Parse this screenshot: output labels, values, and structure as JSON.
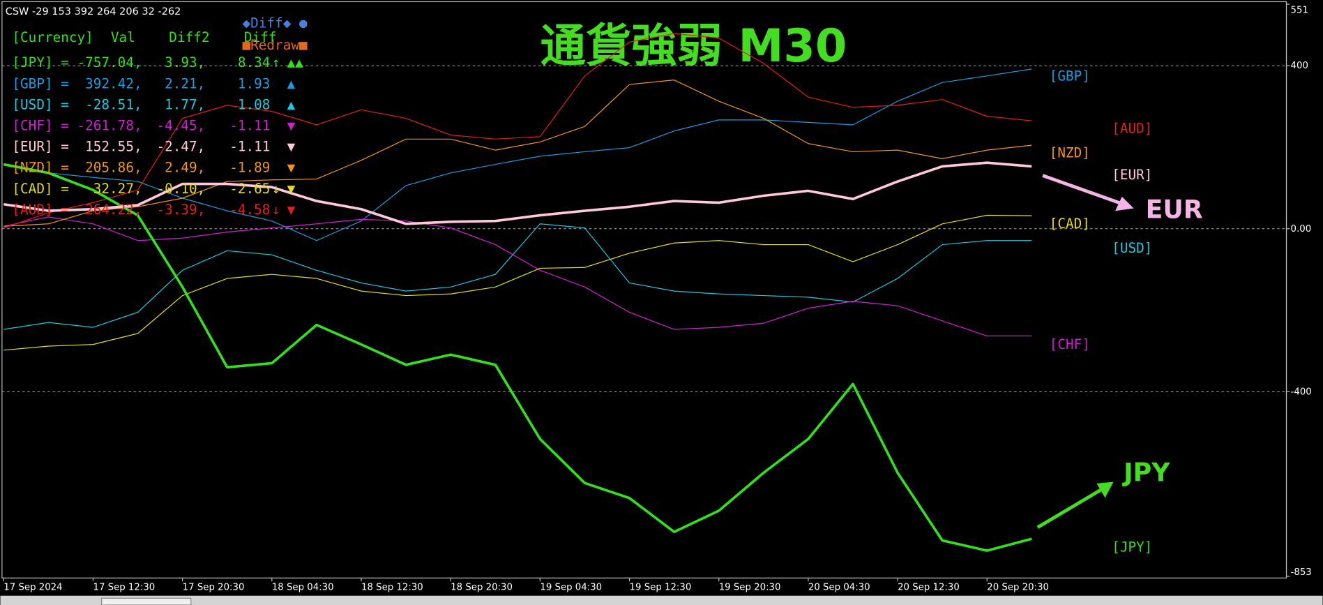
{
  "header": {
    "status": "CSW -29 153 392 264 206 32 -262"
  },
  "buttons": {
    "diff": "◆Diff◆ ●",
    "redraw": "■Redraw■"
  },
  "info_table": {
    "columns": [
      "[Currency]",
      "Val",
      "Diff2",
      "Diff"
    ],
    "rows": [
      {
        "label": "[JPY] = -757.04,",
        "diff2": "3.93,",
        "diff": "8.34",
        "arrow": "↑",
        "signal": "▲▲",
        "color": "#33e01e"
      },
      {
        "label": "[GBP] =  392.42,",
        "diff2": "2.21,",
        "diff": "1.93",
        "signal": "▲",
        "color": "#1e9be0"
      },
      {
        "label": "[USD] =  -28.51,",
        "diff2": "1.77,",
        "diff": "1.08",
        "signal": "▲",
        "color": "#1ec8e0"
      },
      {
        "label": "[CHF] = -261.78,",
        "diff2": "-4.45,",
        "diff": "-1.11",
        "signal": "▼",
        "color": "#d21ed2"
      },
      {
        "label": "[EUR] =  152.55,",
        "diff2": "-2.47,",
        "diff": "-1.11",
        "signal": "▼",
        "color": "#ffc8dc"
      },
      {
        "label": "[NZD] =  205.86,",
        "diff2": "2.49,",
        "diff": "-1.89",
        "signal": "▼",
        "color": "#f0961e"
      },
      {
        "label": "[CAD] =   32.27,",
        "diff2": "-0.10,",
        "diff": "-2.65",
        "arrow": "↓",
        "signal": "▼",
        "color": "#e6dc1e"
      },
      {
        "label": "[AUD] =  264.22,",
        "diff2": "-3.39,",
        "diff": "-4.58",
        "arrow": "↓",
        "signal": "▼",
        "color": "#e61e1e"
      }
    ]
  },
  "chart_data": {
    "type": "line",
    "title": "通貨強弱  M30",
    "title_color": "#44dd22",
    "categories": [
      "17 Sep 2024",
      null,
      "17 Sep 12:30",
      null,
      "17 Sep 20:30",
      null,
      "18 Sep 04:30",
      null,
      "18 Sep 12:30",
      null,
      "18 Sep 20:30",
      null,
      "19 Sep 04:30",
      null,
      "19 Sep 12:30",
      null,
      "19 Sep 20:30",
      null,
      "20 Sep 04:30",
      null,
      "20 Sep 12:30",
      null,
      "20 Sep 20:30",
      null
    ],
    "ylim": [
      -853,
      551
    ],
    "yticks": [
      551,
      400,
      {
        "value": 0,
        "label": "0.00"
      },
      -400,
      -853
    ],
    "grid": true,
    "series": [
      {
        "name": "[JPY]",
        "color": "#33e01e",
        "line_width": 3,
        "values": [
          158,
          137,
          95,
          33,
          -143,
          -340,
          -330,
          -236,
          -284,
          -334,
          -309,
          -334,
          -516,
          -624,
          -661,
          -744,
          -692,
          -599,
          -516,
          -381,
          -599,
          -765,
          -790,
          -761
        ]
      },
      {
        "name": "[GBP]",
        "color": "#1e9be0",
        "line_width": 1,
        "values": [
          158,
          137,
          126,
          116,
          75,
          44,
          19,
          -29,
          19,
          106,
          137,
          158,
          178,
          189,
          199,
          240,
          267,
          267,
          261,
          255,
          313,
          359,
          375,
          392
        ]
      },
      {
        "name": "[USD]",
        "color": "#1ec8e0",
        "line_width": 1,
        "values": [
          -247,
          -230,
          -242,
          -205,
          -102,
          -54,
          -64,
          -102,
          -133,
          -153,
          -143,
          -112,
          12,
          2,
          -133,
          -153,
          -160,
          -164,
          -168,
          -180,
          -122,
          -39,
          -29,
          -29
        ]
      },
      {
        "name": "[CHF]",
        "color": "#d21ed2",
        "line_width": 1,
        "values": [
          6,
          29,
          12,
          -29,
          -23,
          -8,
          2,
          12,
          23,
          19,
          2,
          -39,
          -102,
          -143,
          -205,
          -247,
          -242,
          -232,
          -195,
          -178,
          -189,
          -226,
          -263,
          -263
        ]
      },
      {
        "name": "[EUR]",
        "color": "#ffc8dc",
        "line_width": 3,
        "values": [
          60,
          44,
          48,
          58,
          110,
          110,
          102,
          68,
          48,
          12,
          17,
          19,
          33,
          44,
          54,
          68,
          64,
          81,
          93,
          73,
          116,
          153,
          162,
          153
        ]
      },
      {
        "name": "[NZD]",
        "color": "#f0961e",
        "line_width": 1,
        "values": [
          6,
          12,
          44,
          54,
          75,
          116,
          120,
          122,
          168,
          220,
          220,
          193,
          213,
          251,
          354,
          365,
          313,
          271,
          209,
          189,
          193,
          172,
          193,
          205
        ]
      },
      {
        "name": "[CAD]",
        "color": "#e6dc1e",
        "line_width": 1,
        "values": [
          -298,
          -288,
          -284,
          -257,
          -164,
          -122,
          -112,
          -122,
          -153,
          -164,
          -160,
          -143,
          -97,
          -95,
          -60,
          -35,
          -29,
          -39,
          -39,
          -81,
          -39,
          12,
          33,
          32
        ]
      },
      {
        "name": "[AUD]",
        "color": "#e61e1e",
        "line_width": 1,
        "values": [
          2,
          39,
          64,
          95,
          271,
          303,
          288,
          255,
          292,
          271,
          230,
          220,
          226,
          375,
          458,
          479,
          468,
          406,
          323,
          298,
          303,
          317,
          276,
          265
        ]
      }
    ],
    "annotations": [
      {
        "text": "EUR",
        "color": "#f5b4e6"
      },
      {
        "text": "JPY",
        "color": "#44dd22"
      }
    ]
  }
}
